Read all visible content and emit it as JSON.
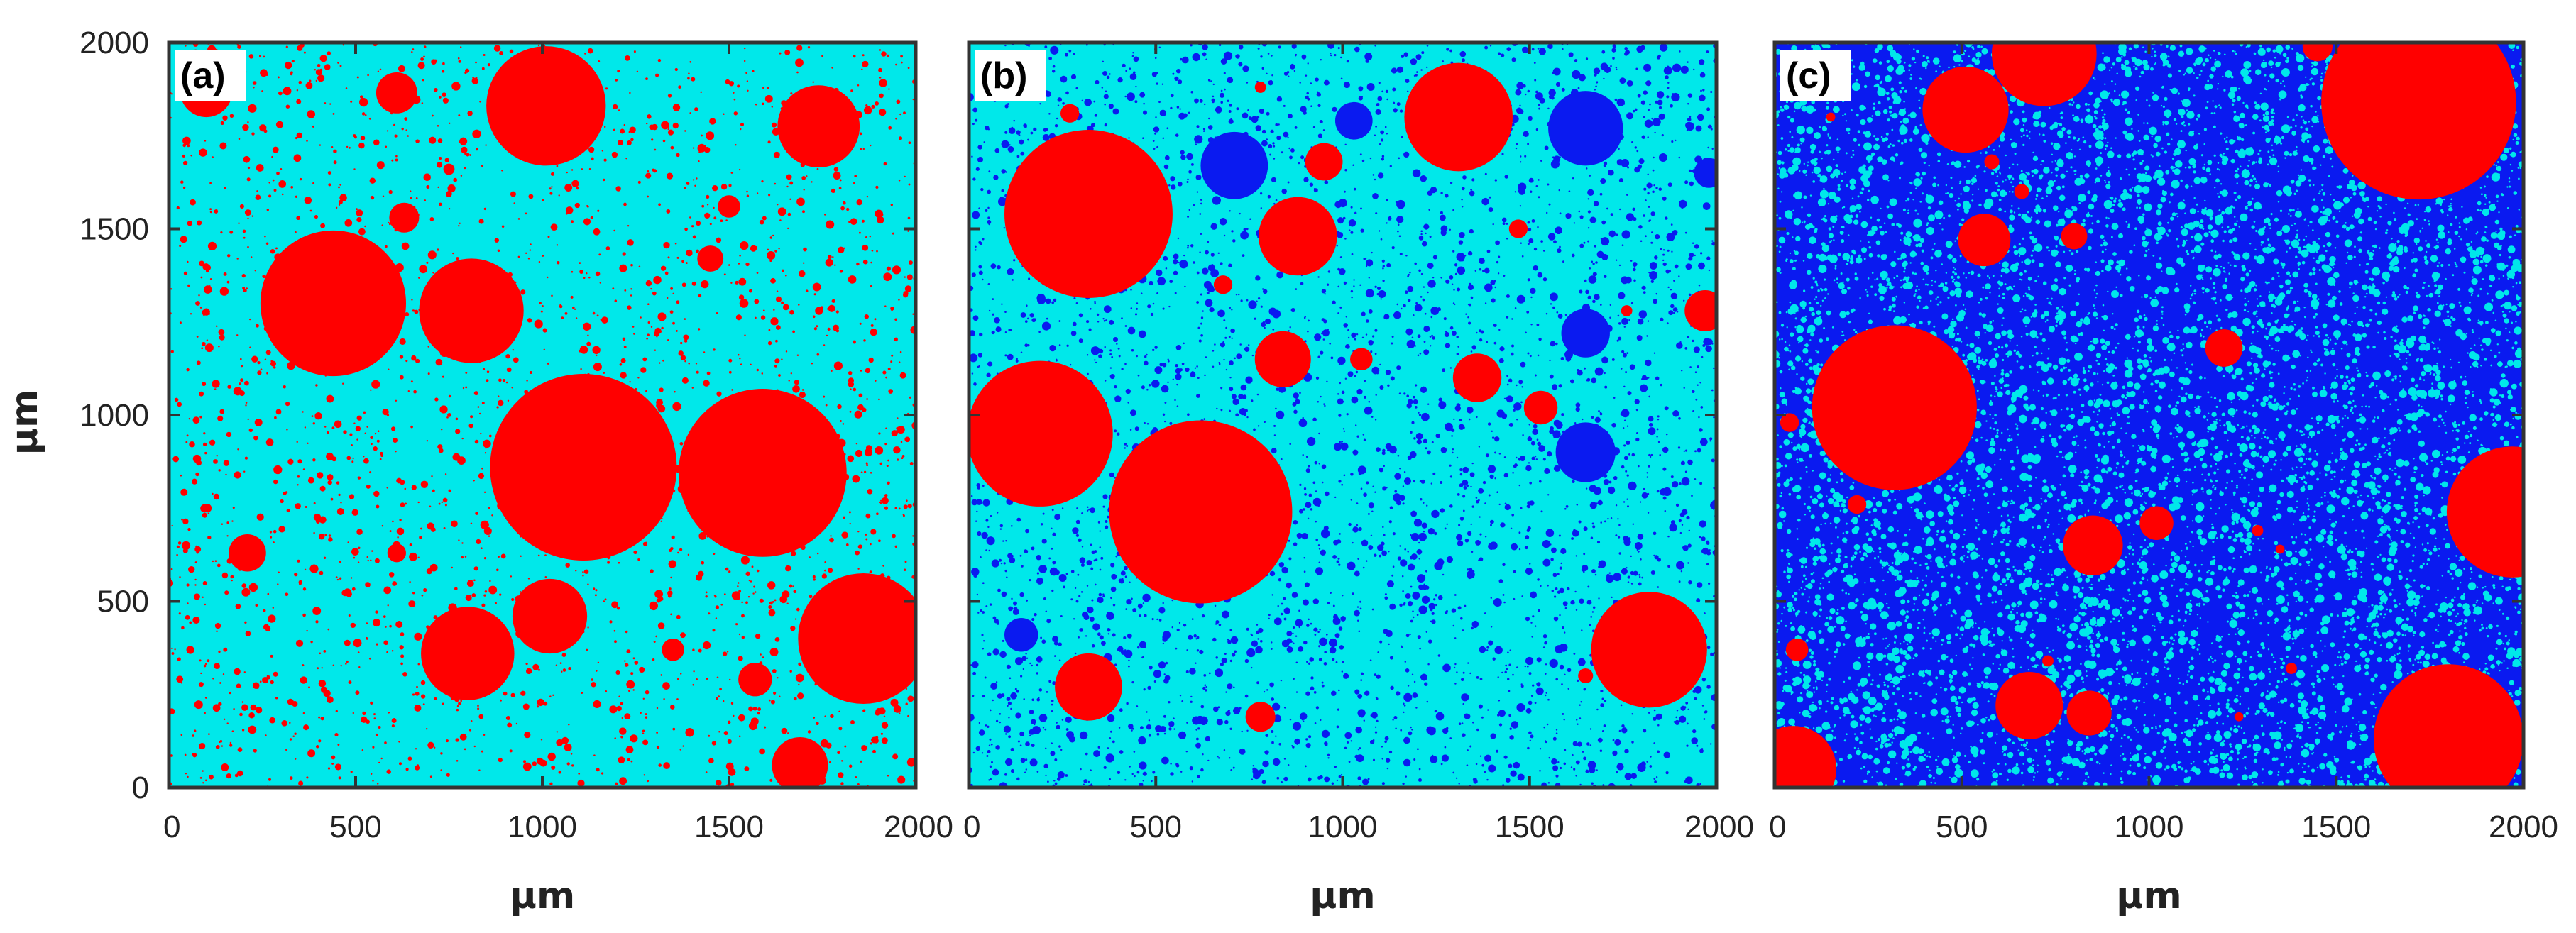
{
  "figure": {
    "ylabel": "μm",
    "colors": {
      "particle": "#ff0000",
      "matrix_cyan": "#00e8ea",
      "pore_blue": "#0a1af0",
      "axis": "#333333",
      "label_box": "#ffffff"
    }
  },
  "chart_data": [
    {
      "type": "scatter",
      "panel_label": "(a)",
      "xlabel": "μm",
      "ylabel": "μm",
      "xlim": [
        0,
        2000
      ],
      "ylim": [
        0,
        2000
      ],
      "xticks": [
        0,
        500,
        1000,
        1500,
        2000
      ],
      "yticks": [
        0,
        500,
        1000,
        1500,
        2000
      ],
      "x_tick_labels": [
        "0",
        "500",
        "1000",
        "1500",
        "2000"
      ],
      "y_tick_labels": [
        "0",
        "500",
        "1000",
        "1500",
        "2000"
      ],
      "background": "cyan",
      "texture": "red",
      "texture_count": 2600,
      "texture_seed": 11,
      "particles": [
        {
          "x": 100,
          "y": 1870,
          "r": 70,
          "color": "red"
        },
        {
          "x": 610,
          "y": 1865,
          "r": 55,
          "color": "red"
        },
        {
          "x": 1010,
          "y": 1830,
          "r": 160,
          "color": "red"
        },
        {
          "x": 1740,
          "y": 1775,
          "r": 110,
          "color": "red"
        },
        {
          "x": 750,
          "y": 1660,
          "r": 15,
          "color": "red"
        },
        {
          "x": 1500,
          "y": 1560,
          "r": 30,
          "color": "red"
        },
        {
          "x": 630,
          "y": 1530,
          "r": 40,
          "color": "red"
        },
        {
          "x": 1450,
          "y": 1420,
          "r": 35,
          "color": "red"
        },
        {
          "x": 440,
          "y": 1300,
          "r": 195,
          "color": "red"
        },
        {
          "x": 810,
          "y": 1280,
          "r": 140,
          "color": "red"
        },
        {
          "x": 1540,
          "y": 1300,
          "r": 12,
          "color": "red"
        },
        {
          "x": 1110,
          "y": 860,
          "r": 250,
          "color": "red"
        },
        {
          "x": 1590,
          "y": 845,
          "r": 225,
          "color": "red"
        },
        {
          "x": 210,
          "y": 630,
          "r": 50,
          "color": "red"
        },
        {
          "x": 610,
          "y": 630,
          "r": 25,
          "color": "red"
        },
        {
          "x": 1020,
          "y": 460,
          "r": 100,
          "color": "red"
        },
        {
          "x": 800,
          "y": 360,
          "r": 125,
          "color": "red"
        },
        {
          "x": 1350,
          "y": 370,
          "r": 30,
          "color": "red"
        },
        {
          "x": 1570,
          "y": 290,
          "r": 45,
          "color": "red"
        },
        {
          "x": 1860,
          "y": 400,
          "r": 175,
          "color": "red"
        },
        {
          "x": 1690,
          "y": 60,
          "r": 75,
          "color": "red"
        }
      ]
    },
    {
      "type": "scatter",
      "panel_label": "(b)",
      "xlabel": "μm",
      "ylabel": "",
      "xlim": [
        0,
        2000
      ],
      "ylim": [
        0,
        2000
      ],
      "xticks": [
        0,
        500,
        1000,
        1500,
        2000
      ],
      "yticks": [
        0,
        500,
        1000,
        1500,
        2000
      ],
      "x_tick_labels": [
        "0",
        "500",
        "1000",
        "1500",
        "2000"
      ],
      "y_tick_labels": [],
      "background": "cyan",
      "texture": "blue",
      "texture_count": 4200,
      "texture_seed": 23,
      "particles": [
        {
          "x": 270,
          "y": 1810,
          "r": 25,
          "color": "red"
        },
        {
          "x": 780,
          "y": 1880,
          "r": 15,
          "color": "red"
        },
        {
          "x": 320,
          "y": 1540,
          "r": 225,
          "color": "red"
        },
        {
          "x": 710,
          "y": 1670,
          "r": 90,
          "color": "blue"
        },
        {
          "x": 1030,
          "y": 1790,
          "r": 50,
          "color": "blue"
        },
        {
          "x": 950,
          "y": 1680,
          "r": 50,
          "color": "red"
        },
        {
          "x": 1310,
          "y": 1800,
          "r": 145,
          "color": "red"
        },
        {
          "x": 1650,
          "y": 1770,
          "r": 100,
          "color": "blue"
        },
        {
          "x": 1980,
          "y": 1650,
          "r": 40,
          "color": "blue"
        },
        {
          "x": 880,
          "y": 1480,
          "r": 105,
          "color": "red"
        },
        {
          "x": 1470,
          "y": 1500,
          "r": 25,
          "color": "red"
        },
        {
          "x": 680,
          "y": 1350,
          "r": 25,
          "color": "red"
        },
        {
          "x": 1760,
          "y": 1280,
          "r": 15,
          "color": "red"
        },
        {
          "x": 1970,
          "y": 1280,
          "r": 55,
          "color": "red"
        },
        {
          "x": 1650,
          "y": 1220,
          "r": 65,
          "color": "blue"
        },
        {
          "x": 840,
          "y": 1150,
          "r": 75,
          "color": "red"
        },
        {
          "x": 1050,
          "y": 1150,
          "r": 30,
          "color": "red"
        },
        {
          "x": 1360,
          "y": 1100,
          "r": 65,
          "color": "red"
        },
        {
          "x": 1530,
          "y": 1020,
          "r": 45,
          "color": "red"
        },
        {
          "x": 1650,
          "y": 900,
          "r": 80,
          "color": "blue"
        },
        {
          "x": 190,
          "y": 950,
          "r": 195,
          "color": "red"
        },
        {
          "x": 620,
          "y": 740,
          "r": 245,
          "color": "red"
        },
        {
          "x": 140,
          "y": 410,
          "r": 45,
          "color": "blue"
        },
        {
          "x": 320,
          "y": 270,
          "r": 90,
          "color": "red"
        },
        {
          "x": 780,
          "y": 190,
          "r": 40,
          "color": "red"
        },
        {
          "x": 1820,
          "y": 370,
          "r": 155,
          "color": "red"
        },
        {
          "x": 1650,
          "y": 300,
          "r": 20,
          "color": "red"
        }
      ]
    },
    {
      "type": "scatter",
      "panel_label": "(c)",
      "xlabel": "μm",
      "ylabel": "",
      "xlim": [
        0,
        2000
      ],
      "ylim": [
        0,
        2000
      ],
      "xticks": [
        0,
        500,
        1000,
        1500,
        2000
      ],
      "yticks": [
        0,
        500,
        1000,
        1500,
        2000
      ],
      "x_tick_labels": [
        "0",
        "500",
        "1000",
        "1500",
        "2000"
      ],
      "y_tick_labels": [],
      "background": "blue",
      "texture": "cyan",
      "texture_count": 9000,
      "texture_seed": 37,
      "particles": [
        {
          "x": 720,
          "y": 1970,
          "r": 140,
          "color": "red"
        },
        {
          "x": 1450,
          "y": 1990,
          "r": 40,
          "color": "red"
        },
        {
          "x": 1720,
          "y": 1840,
          "r": 260,
          "color": "red"
        },
        {
          "x": 510,
          "y": 1820,
          "r": 115,
          "color": "red"
        },
        {
          "x": 150,
          "y": 1800,
          "r": 12,
          "color": "red"
        },
        {
          "x": 580,
          "y": 1680,
          "r": 20,
          "color": "red"
        },
        {
          "x": 660,
          "y": 1600,
          "r": 20,
          "color": "red"
        },
        {
          "x": 560,
          "y": 1470,
          "r": 70,
          "color": "red"
        },
        {
          "x": 800,
          "y": 1480,
          "r": 35,
          "color": "red"
        },
        {
          "x": 1200,
          "y": 1180,
          "r": 50,
          "color": "red"
        },
        {
          "x": 320,
          "y": 1020,
          "r": 220,
          "color": "red"
        },
        {
          "x": 40,
          "y": 980,
          "r": 25,
          "color": "red"
        },
        {
          "x": 220,
          "y": 760,
          "r": 25,
          "color": "red"
        },
        {
          "x": 1970,
          "y": 740,
          "r": 175,
          "color": "red"
        },
        {
          "x": 1020,
          "y": 710,
          "r": 45,
          "color": "red"
        },
        {
          "x": 850,
          "y": 650,
          "r": 80,
          "color": "red"
        },
        {
          "x": 1290,
          "y": 690,
          "r": 15,
          "color": "red"
        },
        {
          "x": 1350,
          "y": 640,
          "r": 12,
          "color": "red"
        },
        {
          "x": 60,
          "y": 370,
          "r": 30,
          "color": "red"
        },
        {
          "x": 730,
          "y": 340,
          "r": 15,
          "color": "red"
        },
        {
          "x": 1380,
          "y": 320,
          "r": 15,
          "color": "red"
        },
        {
          "x": 680,
          "y": 220,
          "r": 90,
          "color": "red"
        },
        {
          "x": 840,
          "y": 200,
          "r": 60,
          "color": "red"
        },
        {
          "x": 1240,
          "y": 190,
          "r": 12,
          "color": "red"
        },
        {
          "x": 1800,
          "y": 130,
          "r": 200,
          "color": "red"
        },
        {
          "x": 50,
          "y": 50,
          "r": 115,
          "color": "red"
        }
      ]
    }
  ]
}
